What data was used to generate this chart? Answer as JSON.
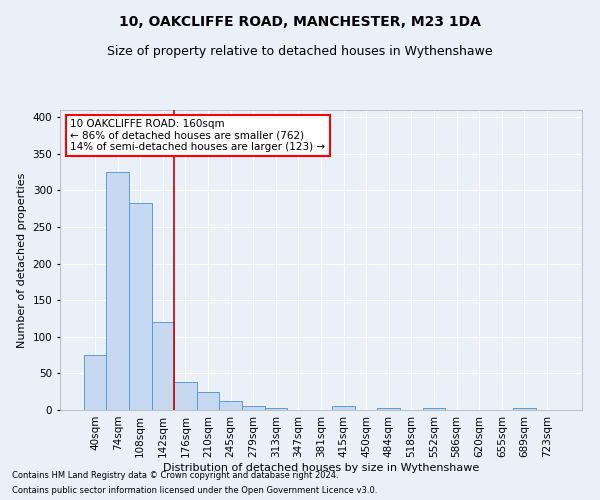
{
  "title1": "10, OAKCLIFFE ROAD, MANCHESTER, M23 1DA",
  "title2": "Size of property relative to detached houses in Wythenshawe",
  "xlabel": "Distribution of detached houses by size in Wythenshawe",
  "ylabel": "Number of detached properties",
  "footnote1": "Contains HM Land Registry data © Crown copyright and database right 2024.",
  "footnote2": "Contains public sector information licensed under the Open Government Licence v3.0.",
  "bin_labels": [
    "40sqm",
    "74sqm",
    "108sqm",
    "142sqm",
    "176sqm",
    "210sqm",
    "245sqm",
    "279sqm",
    "313sqm",
    "347sqm",
    "381sqm",
    "415sqm",
    "450sqm",
    "484sqm",
    "518sqm",
    "552sqm",
    "586sqm",
    "620sqm",
    "655sqm",
    "689sqm",
    "723sqm"
  ],
  "bar_values": [
    75,
    325,
    283,
    120,
    38,
    25,
    12,
    5,
    3,
    0,
    0,
    5,
    0,
    3,
    0,
    3,
    0,
    0,
    0,
    3,
    0
  ],
  "bar_color": "#c6d9f0",
  "bar_edge_color": "#5b9bd5",
  "annotation_line1": "10 OAKCLIFFE ROAD: 160sqm",
  "annotation_line2": "← 86% of detached houses are smaller (762)",
  "annotation_line3": "14% of semi-detached houses are larger (123) →",
  "vline_x_index": 3.5,
  "vline_color": "#cc0000",
  "ylim": [
    0,
    410
  ],
  "yticks": [
    0,
    50,
    100,
    150,
    200,
    250,
    300,
    350,
    400
  ],
  "background_color": "#eaf0f8",
  "grid_color": "#ffffff",
  "title_fontsize": 10,
  "subtitle_fontsize": 9,
  "axis_label_fontsize": 8,
  "tick_fontsize": 7.5,
  "annotation_fontsize": 7.5,
  "footnote_fontsize": 6
}
